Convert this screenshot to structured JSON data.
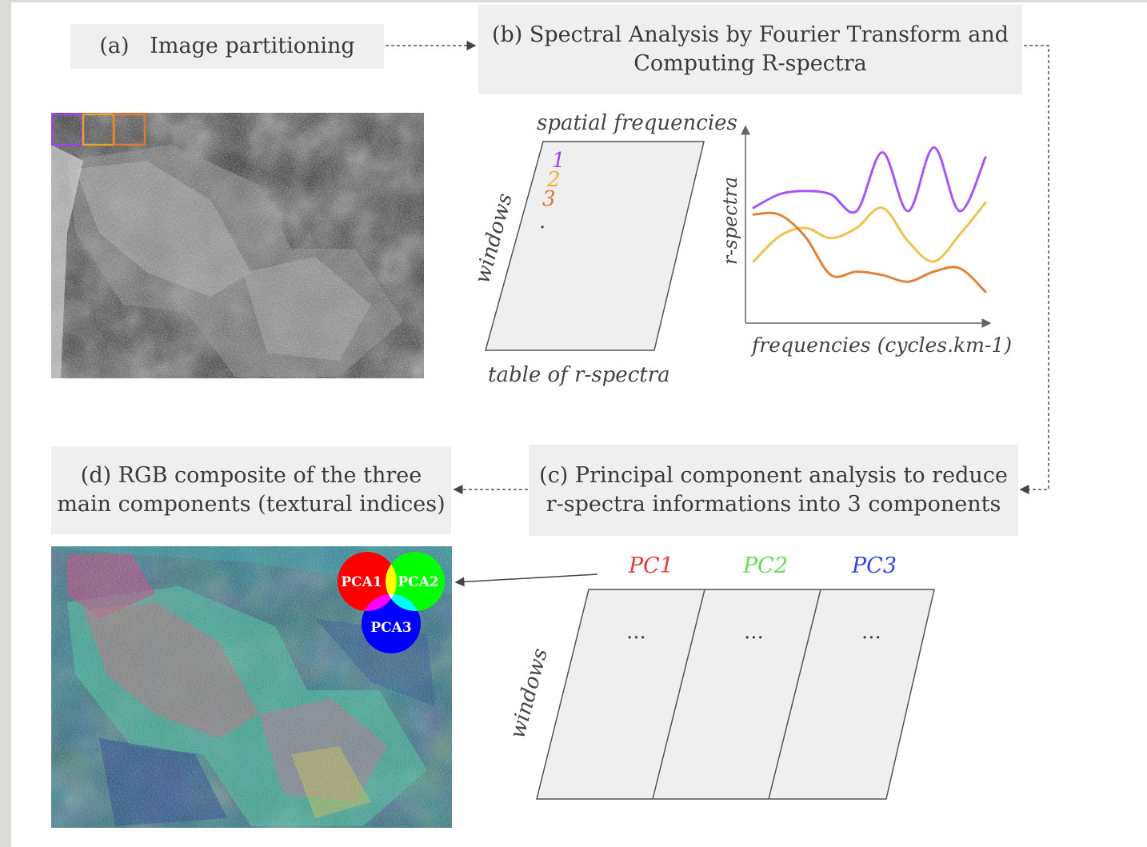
{
  "steps": {
    "a": "(a)   Image partitioning",
    "b_line1": "(b) Spectral Analysis by Fourier Transform and",
    "b_line2": "Computing R-spectra",
    "c_line1": "(c) Principal component analysis to reduce",
    "c_line2": "r-spectra informations into 3 components",
    "d_line1": "(d) RGB composite of the three",
    "d_line2": "main components (textural indices)"
  },
  "table_r": {
    "top_label": "spatial frequencies",
    "side_label": "windows",
    "bottom_label": "table of r-spectra",
    "rows": [
      "1",
      "2",
      "3",
      "."
    ],
    "row_colors": [
      "#a040f0",
      "#f0b030",
      "#e07830",
      "#444444"
    ]
  },
  "chart": {
    "ylabel": "r-spectra",
    "xlabel": "frequencies (cycles.km-1)"
  },
  "chart_data": {
    "type": "line",
    "title": "",
    "xlabel": "frequencies (cycles.km-1)",
    "ylabel": "r-spectra",
    "series": [
      {
        "values": [
          0.62,
          0.7,
          0.72,
          0.7,
          0.6,
          0.95,
          0.6,
          0.98,
          0.6,
          0.92
        ],
        "color": "#a855f7"
      },
      {
        "values": [
          0.3,
          0.45,
          0.5,
          0.44,
          0.5,
          0.62,
          0.42,
          0.3,
          0.46,
          0.65
        ],
        "color": "#f2c14e"
      },
      {
        "values": [
          0.58,
          0.58,
          0.45,
          0.22,
          0.24,
          0.22,
          0.18,
          0.24,
          0.26,
          0.12
        ],
        "color": "#e0823a"
      }
    ]
  },
  "pca_table": {
    "headers": [
      "PC1",
      "PC2",
      "PC3"
    ],
    "header_colors": [
      "#e53935",
      "#66dd55",
      "#3344dd"
    ],
    "cells": [
      "...",
      "...",
      "..."
    ],
    "side_label": "windows"
  },
  "legend": {
    "labels": [
      "PCA1",
      "PCA2",
      "PCA3"
    ],
    "colors": [
      "#ff0000",
      "#00ff00",
      "#0000ff"
    ]
  },
  "colors": {
    "box_bg": "#efefef",
    "window1": "#a040f0",
    "window2": "#e8a030",
    "window3": "#e07830"
  }
}
